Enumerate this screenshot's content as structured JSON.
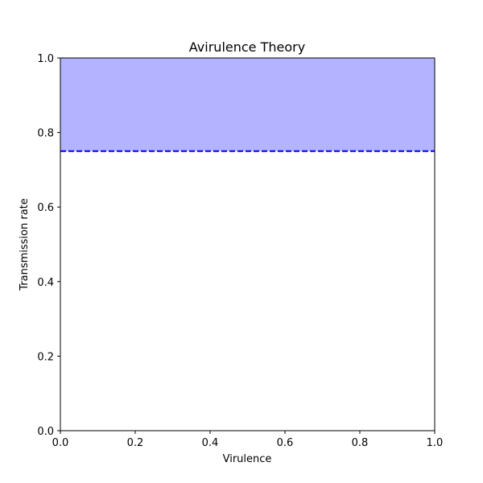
{
  "chart_data": {
    "type": "area",
    "title": "Avirulence Theory",
    "xlabel": "Virulence",
    "ylabel": "Transmission rate",
    "xlim": [
      0.0,
      1.0
    ],
    "ylim": [
      0.0,
      1.0
    ],
    "xticks": [
      0.0,
      0.2,
      0.4,
      0.6,
      0.8,
      1.0
    ],
    "yticks": [
      0.0,
      0.2,
      0.4,
      0.6,
      0.8,
      1.0
    ],
    "xtick_labels": [
      "0.0",
      "0.2",
      "0.4",
      "0.6",
      "0.8",
      "1.0"
    ],
    "ytick_labels": [
      "0.0",
      "0.2",
      "0.4",
      "0.6",
      "0.8",
      "1.0"
    ],
    "grid": false,
    "series": [
      {
        "kind": "line",
        "style": "dashed",
        "color": "#0000ff",
        "x": [
          0.0,
          1.0
        ],
        "y": [
          0.75,
          0.75
        ]
      },
      {
        "kind": "fill_between",
        "color": "#b3b3ff",
        "x": [
          0.0,
          1.0
        ],
        "y_lower": [
          0.75,
          0.75
        ],
        "y_upper": [
          1.0,
          1.0
        ]
      }
    ]
  }
}
